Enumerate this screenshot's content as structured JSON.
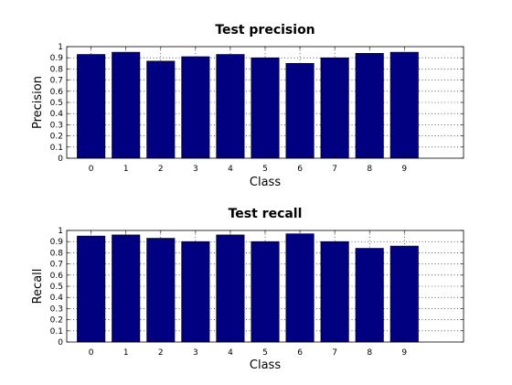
{
  "colors": {
    "bar": "#000080"
  },
  "chart_data": [
    {
      "type": "bar",
      "title": "Test precision",
      "xlabel": "Class",
      "ylabel": "Precision",
      "categories": [
        "0",
        "1",
        "2",
        "3",
        "4",
        "5",
        "6",
        "7",
        "8",
        "9"
      ],
      "values": [
        0.93,
        0.95,
        0.87,
        0.91,
        0.93,
        0.9,
        0.85,
        0.9,
        0.94,
        0.95
      ],
      "xlim": [
        -0.7,
        10.7
      ],
      "ylim": [
        0,
        1
      ],
      "yticks": [
        "0",
        "0.1",
        "0.2",
        "0.3",
        "0.4",
        "0.5",
        "0.6",
        "0.7",
        "0.8",
        "0.9",
        "1"
      ],
      "grid": true
    },
    {
      "type": "bar",
      "title": "Test recall",
      "xlabel": "Class",
      "ylabel": "Recall",
      "categories": [
        "0",
        "1",
        "2",
        "3",
        "4",
        "5",
        "6",
        "7",
        "8",
        "9"
      ],
      "values": [
        0.95,
        0.96,
        0.93,
        0.9,
        0.96,
        0.9,
        0.97,
        0.9,
        0.84,
        0.86
      ],
      "xlim": [
        -0.7,
        10.7
      ],
      "ylim": [
        0,
        1
      ],
      "yticks": [
        "0",
        "0.1",
        "0.2",
        "0.3",
        "0.4",
        "0.5",
        "0.6",
        "0.7",
        "0.8",
        "0.9",
        "1"
      ],
      "grid": true
    }
  ]
}
